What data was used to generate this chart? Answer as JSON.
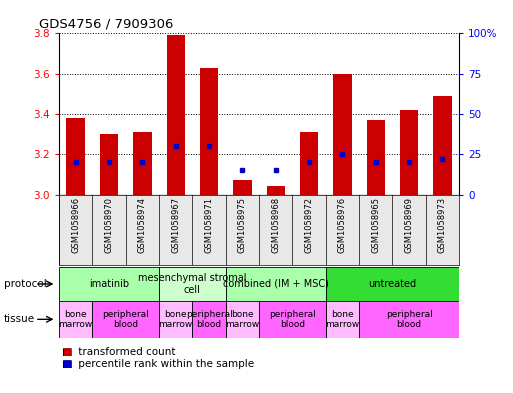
{
  "title": "GDS4756 / 7909306",
  "samples": [
    "GSM1058966",
    "GSM1058970",
    "GSM1058974",
    "GSM1058967",
    "GSM1058971",
    "GSM1058975",
    "GSM1058968",
    "GSM1058972",
    "GSM1058976",
    "GSM1058965",
    "GSM1058969",
    "GSM1058973"
  ],
  "transformed_count": [
    3.38,
    3.3,
    3.31,
    3.79,
    3.63,
    3.07,
    3.04,
    3.31,
    3.6,
    3.37,
    3.42,
    3.49
  ],
  "percentile_rank": [
    20,
    20,
    20,
    30,
    30,
    15,
    15,
    20,
    25,
    20,
    20,
    22
  ],
  "ylim_left": [
    3.0,
    3.8
  ],
  "yticks_left": [
    3.0,
    3.2,
    3.4,
    3.6,
    3.8
  ],
  "yticks_right": [
    0,
    25,
    50,
    75,
    100
  ],
  "bar_color": "#cc0000",
  "dot_color": "#0000cc",
  "bar_bottom": 3.0,
  "protocols": [
    {
      "label": "imatinib",
      "start": 0,
      "end": 3,
      "color": "#aaffaa"
    },
    {
      "label": "mesenchymal stromal\ncell",
      "start": 3,
      "end": 5,
      "color": "#ccffcc"
    },
    {
      "label": "combined (IM + MSC)",
      "start": 5,
      "end": 8,
      "color": "#aaffaa"
    },
    {
      "label": "untreated",
      "start": 8,
      "end": 12,
      "color": "#33dd33"
    }
  ],
  "tissues": [
    {
      "label": "bone\nmarrow",
      "start": 0,
      "end": 1,
      "color": "#ffbbff"
    },
    {
      "label": "peripheral\nblood",
      "start": 1,
      "end": 3,
      "color": "#ff66ff"
    },
    {
      "label": "bone\nmarrow",
      "start": 3,
      "end": 4,
      "color": "#ffbbff"
    },
    {
      "label": "peripheral\nblood",
      "start": 4,
      "end": 5,
      "color": "#ff66ff"
    },
    {
      "label": "bone\nmarrow",
      "start": 5,
      "end": 6,
      "color": "#ffbbff"
    },
    {
      "label": "peripheral\nblood",
      "start": 6,
      "end": 8,
      "color": "#ff66ff"
    },
    {
      "label": "bone\nmarrow",
      "start": 8,
      "end": 9,
      "color": "#ffbbff"
    },
    {
      "label": "peripheral\nblood",
      "start": 9,
      "end": 12,
      "color": "#ff66ff"
    }
  ],
  "protocol_label": "protocol",
  "tissue_label": "tissue",
  "bg_color": "#e8e8e8",
  "legend_items": [
    {
      "label": "transformed count",
      "color": "#cc0000"
    },
    {
      "label": "percentile rank within the sample",
      "color": "#0000cc"
    }
  ]
}
